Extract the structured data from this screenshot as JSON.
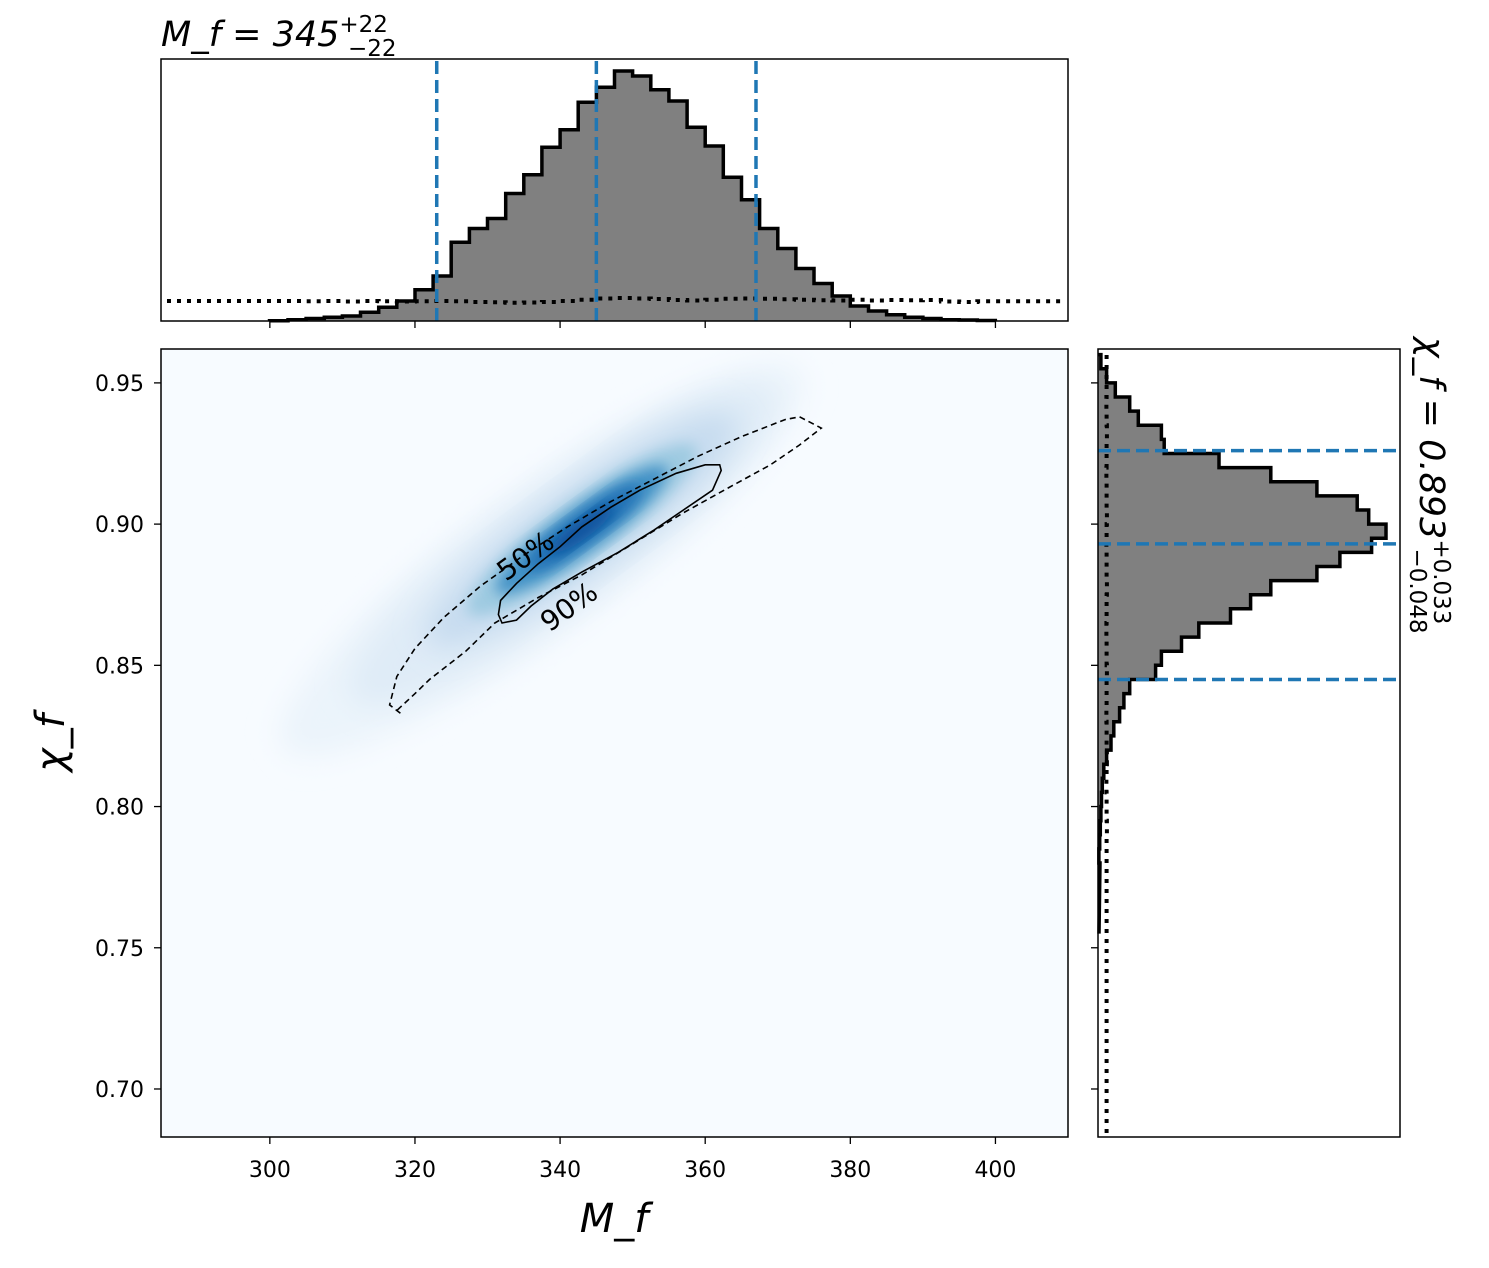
{
  "colors": {
    "hist_fill": "#808080",
    "hist_edge": "#000000",
    "interval_lines": "#1f77b4",
    "density_light": "#f7fbff",
    "density_dark": "#08306b",
    "contour": "#000000"
  },
  "chart_data": [
    {
      "type": "heatmap",
      "name": "joint-posterior",
      "xlabel": "M_f",
      "ylabel": "χ_f",
      "xlim": [
        285,
        410
      ],
      "ylim": [
        0.683,
        0.962
      ],
      "xticks": [
        300,
        320,
        340,
        360,
        380,
        400
      ],
      "yticks": [
        0.7,
        0.75,
        0.8,
        0.85,
        0.9,
        0.95
      ],
      "ytick_labels": [
        "0.70",
        "0.75",
        "0.80",
        "0.85",
        "0.90",
        "0.95"
      ],
      "colormap": "Blues",
      "density_peak": {
        "x": 343,
        "y": 0.898
      },
      "contours": [
        {
          "label": "50%",
          "style": "solid",
          "points": [
            [
              332,
              0.865
            ],
            [
              331.5,
              0.868
            ],
            [
              331.8,
              0.873
            ],
            [
              334,
              0.879
            ],
            [
              337,
              0.886
            ],
            [
              340,
              0.892
            ],
            [
              343,
              0.899
            ],
            [
              347,
              0.906
            ],
            [
              351,
              0.912
            ],
            [
              356,
              0.918
            ],
            [
              360,
              0.921
            ],
            [
              362,
              0.921
            ],
            [
              362.2,
              0.919
            ],
            [
              361,
              0.912
            ],
            [
              357,
              0.905
            ],
            [
              353,
              0.898
            ],
            [
              348,
              0.89
            ],
            [
              343,
              0.883
            ],
            [
              339,
              0.877
            ],
            [
              336,
              0.871
            ],
            [
              334,
              0.866
            ]
          ]
        },
        {
          "label": "90%",
          "style": "dashed",
          "points": [
            [
              318,
              0.833
            ],
            [
              316.5,
              0.836
            ],
            [
              317.5,
              0.846
            ],
            [
              320,
              0.856
            ],
            [
              324,
              0.867
            ],
            [
              329,
              0.878
            ],
            [
              335,
              0.889
            ],
            [
              341,
              0.899
            ],
            [
              347,
              0.908
            ],
            [
              353,
              0.916
            ],
            [
              359,
              0.924
            ],
            [
              365,
              0.931
            ],
            [
              371,
              0.937
            ],
            [
              373,
              0.938
            ],
            [
              376,
              0.934
            ],
            [
              373,
              0.928
            ],
            [
              369,
              0.921
            ],
            [
              364,
              0.914
            ],
            [
              357,
              0.904
            ],
            [
              350,
              0.893
            ],
            [
              343,
              0.882
            ],
            [
              337,
              0.874
            ],
            [
              331,
              0.865
            ],
            [
              327,
              0.855
            ],
            [
              322,
              0.845
            ],
            [
              320,
              0.84
            ],
            [
              317.5,
              0.834
            ]
          ]
        }
      ],
      "contour_labels": [
        {
          "text": "50%",
          "x": 336,
          "y": 0.886
        },
        {
          "text": "90%",
          "x": 342,
          "y": 0.868
        }
      ]
    },
    {
      "type": "bar",
      "name": "M_f-marginal",
      "title_main": "M_f = 345",
      "title_sup": "+22",
      "title_sub": "−22",
      "xlim": [
        285,
        410
      ],
      "bin_edges": [
        300,
        302.5,
        305,
        307.5,
        310,
        312.5,
        315,
        317.5,
        320,
        322.5,
        325,
        327.5,
        330,
        332.5,
        335,
        337.5,
        340,
        342.5,
        345,
        347.5,
        350,
        352.5,
        355,
        357.5,
        360,
        362.5,
        365,
        367.5,
        370,
        372.5,
        375,
        377.5,
        380,
        382.5,
        385,
        387.5,
        390,
        392.5,
        395,
        397.5,
        400
      ],
      "values": [
        0.001,
        0.005,
        0.01,
        0.015,
        0.02,
        0.035,
        0.055,
        0.08,
        0.125,
        0.18,
        0.315,
        0.37,
        0.41,
        0.51,
        0.585,
        0.695,
        0.765,
        0.875,
        0.935,
        1.0,
        0.98,
        0.925,
        0.88,
        0.775,
        0.7,
        0.575,
        0.485,
        0.37,
        0.29,
        0.21,
        0.15,
        0.1,
        0.06,
        0.04,
        0.025,
        0.015,
        0.01,
        0.005,
        0.004,
        0.002
      ],
      "prior_values": [
        0.08,
        0.08,
        0.079,
        0.08,
        0.078,
        0.08,
        0.079,
        0.078,
        0.079,
        0.08,
        0.079,
        0.076,
        0.075,
        0.073,
        0.074,
        0.076,
        0.08,
        0.085,
        0.09,
        0.092,
        0.09,
        0.088,
        0.084,
        0.082,
        0.085,
        0.089,
        0.09,
        0.089,
        0.087,
        0.085,
        0.083,
        0.082,
        0.085,
        0.082,
        0.084,
        0.083,
        0.084,
        0.078,
        0.076,
        0.079
      ],
      "vlines": [
        323,
        345,
        367
      ]
    },
    {
      "type": "bar",
      "name": "chi_f-marginal",
      "orientation": "horizontal",
      "title_main": "χ_f = 0.893",
      "title_sup": "+0.033",
      "title_sub": "−0.048",
      "ylim": [
        0.683,
        0.962
      ],
      "bin_edges": [
        0.78,
        0.785,
        0.79,
        0.795,
        0.8,
        0.805,
        0.81,
        0.815,
        0.82,
        0.825,
        0.83,
        0.835,
        0.84,
        0.845,
        0.85,
        0.855,
        0.86,
        0.865,
        0.87,
        0.875,
        0.88,
        0.885,
        0.89,
        0.895,
        0.9,
        0.905,
        0.91,
        0.915,
        0.92,
        0.925,
        0.93,
        0.935,
        0.94,
        0.945,
        0.95,
        0.955,
        0.96
      ],
      "values": [
        0.003,
        0.006,
        0.008,
        0.01,
        0.012,
        0.015,
        0.02,
        0.03,
        0.045,
        0.055,
        0.075,
        0.09,
        0.11,
        0.2,
        0.22,
        0.29,
        0.35,
        0.46,
        0.53,
        0.6,
        0.76,
        0.84,
        0.95,
        1.0,
        0.94,
        0.9,
        0.76,
        0.6,
        0.42,
        0.23,
        0.22,
        0.14,
        0.11,
        0.06,
        0.03,
        0.01
      ],
      "prior_values": [
        0.025,
        0.025,
        0.026,
        0.025,
        0.025,
        0.024,
        0.025,
        0.026,
        0.025,
        0.025,
        0.024,
        0.025,
        0.025,
        0.026,
        0.025,
        0.025,
        0.024,
        0.025,
        0.025,
        0.026,
        0.025,
        0.025,
        0.024,
        0.025,
        0.026,
        0.025,
        0.025,
        0.024,
        0.025,
        0.025,
        0.026,
        0.025,
        0.024,
        0.025,
        0.025,
        0.025
      ],
      "hlines": [
        0.845,
        0.893,
        0.926
      ]
    }
  ]
}
